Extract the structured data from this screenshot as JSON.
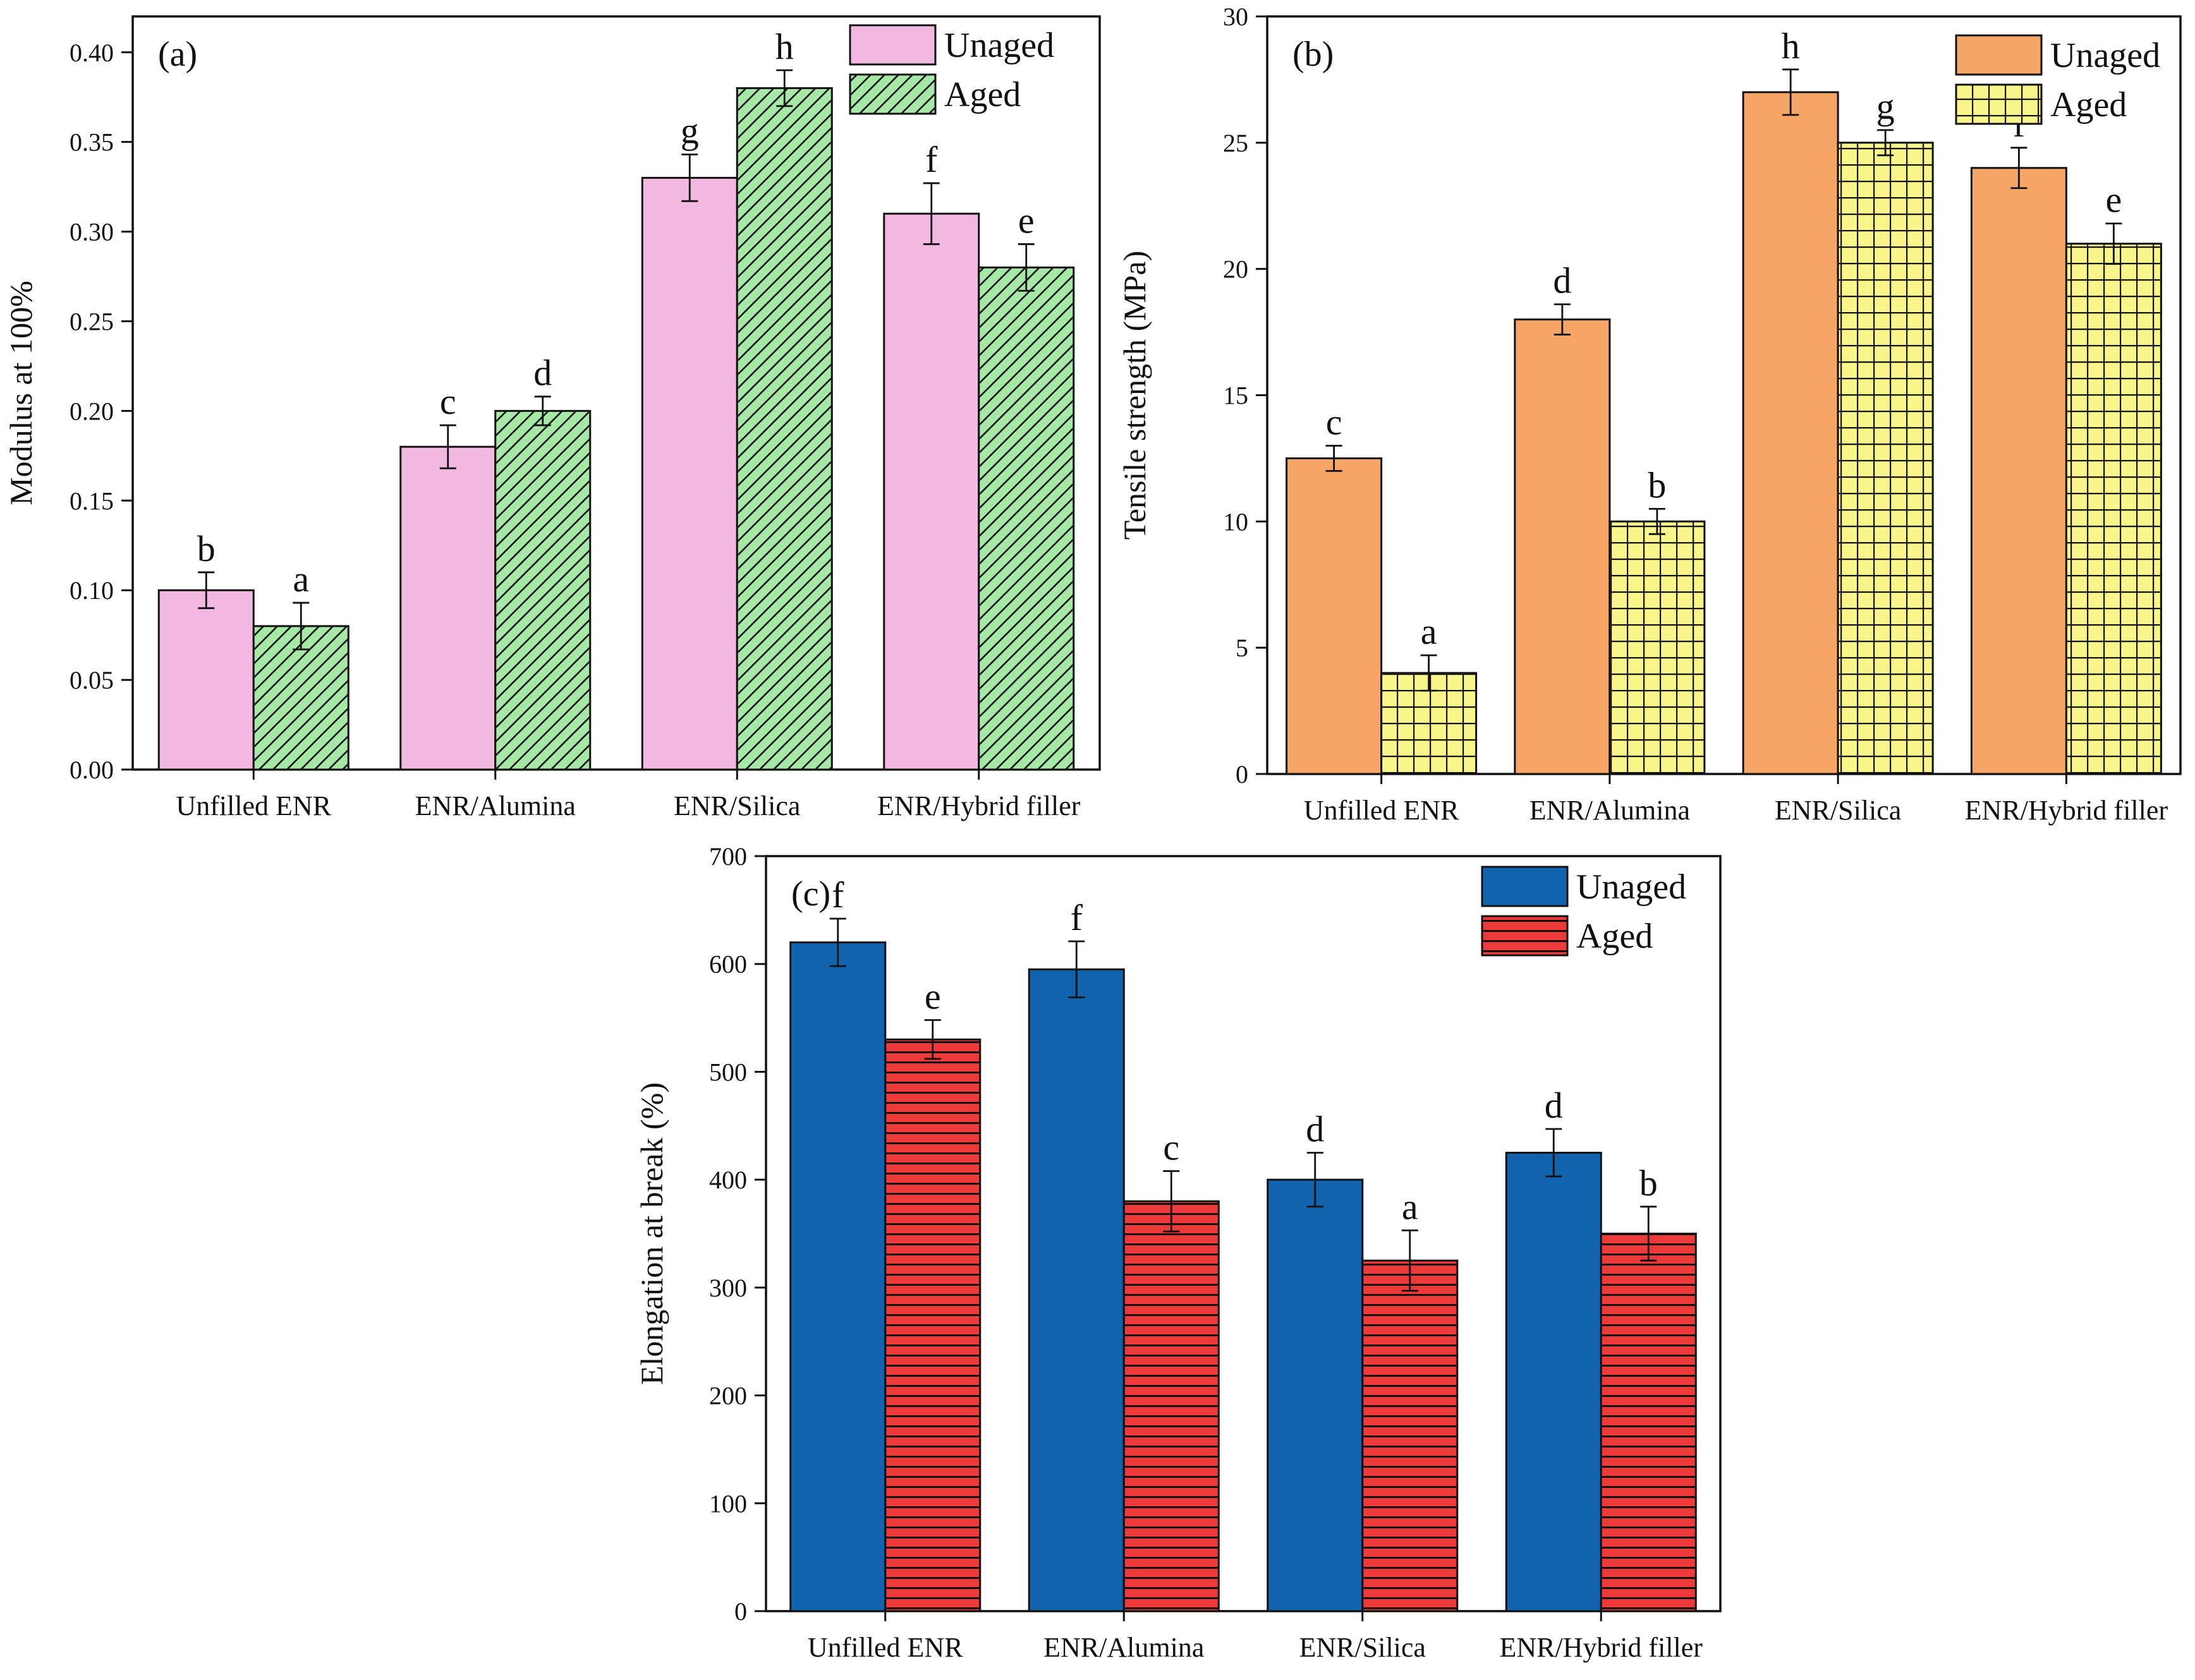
{
  "chart_data": [
    {
      "type": "bar",
      "panel_label": "(a)",
      "title": "",
      "xlabel": "",
      "ylabel": "Modulus at 100%",
      "ylim": [
        0,
        0.42
      ],
      "yticks": [
        "0.00",
        "0.05",
        "0.10",
        "0.15",
        "0.20",
        "0.25",
        "0.30",
        "0.35",
        "0.40"
      ],
      "categories": [
        "Unfilled ENR",
        "ENR/Alumina",
        "ENR/Silica",
        "ENR/Hybrid filler"
      ],
      "series": [
        {
          "name": "Unaged",
          "values": [
            0.1,
            0.18,
            0.33,
            0.31
          ],
          "errors": [
            0.01,
            0.012,
            0.013,
            0.017
          ],
          "labels": [
            "b",
            "c",
            "g",
            "f"
          ],
          "color": "#f2b8e0",
          "pattern": "none"
        },
        {
          "name": "Aged",
          "values": [
            0.08,
            0.2,
            0.38,
            0.28
          ],
          "errors": [
            0.013,
            0.008,
            0.01,
            0.013
          ],
          "labels": [
            "a",
            "d",
            "h",
            "e"
          ],
          "color": "#a6e8a6",
          "pattern": "diagonal"
        }
      ],
      "legend_position": "top-right",
      "grid": false
    },
    {
      "type": "bar",
      "panel_label": "(b)",
      "title": "",
      "xlabel": "",
      "ylabel": "Tensile strength (MPa)",
      "ylim": [
        0,
        30
      ],
      "yticks": [
        "0",
        "5",
        "10",
        "15",
        "20",
        "25",
        "30"
      ],
      "categories": [
        "Unfilled ENR",
        "ENR/Alumina",
        "ENR/Silica",
        "ENR/Hybrid filler"
      ],
      "series": [
        {
          "name": "Unaged",
          "values": [
            12.5,
            18.0,
            27.0,
            24.0
          ],
          "errors": [
            0.5,
            0.6,
            0.9,
            0.8
          ],
          "labels": [
            "c",
            "d",
            "h",
            "f"
          ],
          "color": "#f5a566",
          "pattern": "none"
        },
        {
          "name": "Aged",
          "values": [
            4.0,
            10.0,
            25.0,
            21.0
          ],
          "errors": [
            0.7,
            0.5,
            0.5,
            0.8
          ],
          "labels": [
            "a",
            "b",
            "g",
            "e"
          ],
          "color": "#f8f58a",
          "pattern": "grid"
        }
      ],
      "legend_position": "top-right",
      "grid": false
    },
    {
      "type": "bar",
      "panel_label": "(c)",
      "title": "",
      "xlabel": "",
      "ylabel": "Elongation at break (%)",
      "ylim": [
        0,
        700
      ],
      "yticks": [
        "0",
        "100",
        "200",
        "300",
        "400",
        "500",
        "600",
        "700"
      ],
      "categories": [
        "Unfilled ENR",
        "ENR/Alumina",
        "ENR/Silica",
        "ENR/Hybrid filler"
      ],
      "series": [
        {
          "name": "Unaged",
          "values": [
            620,
            595,
            400,
            425
          ],
          "errors": [
            22,
            26,
            25,
            22
          ],
          "labels": [
            "f",
            "f",
            "d",
            "d"
          ],
          "color": "#1163ad",
          "pattern": "none"
        },
        {
          "name": "Aged",
          "values": [
            530,
            380,
            325,
            350
          ],
          "errors": [
            18,
            28,
            28,
            25
          ],
          "labels": [
            "e",
            "c",
            "a",
            "b"
          ],
          "color": "#ec3a3a",
          "pattern": "horizontal"
        }
      ],
      "legend_position": "top-right",
      "grid": false
    }
  ]
}
